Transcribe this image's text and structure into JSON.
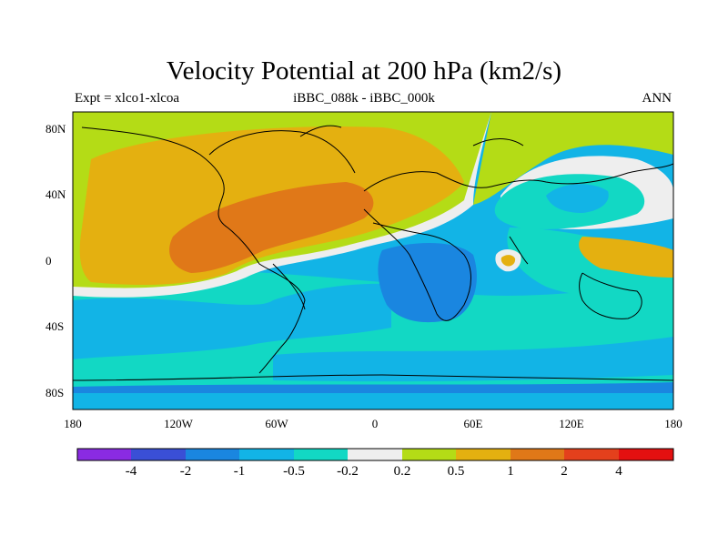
{
  "title": "Velocity Potential at 200 hPa (km2/s)",
  "subtitle_left": "Expt = xlco1-xlcoa",
  "subtitle_center": "iBBC_088k - iBBC_000k",
  "subtitle_right": "ANN",
  "y_ticks": [
    "80N",
    "40N",
    "0",
    "40S",
    "80S"
  ],
  "x_ticks": [
    "180",
    "120W",
    "60W",
    "0",
    "60E",
    "120E",
    "180"
  ],
  "colorbar": {
    "labels": [
      "-4",
      "-2",
      "-1",
      "-0.5",
      "-0.2",
      "0.2",
      "0.5",
      "1",
      "2",
      "4"
    ],
    "colors": [
      "#8a2be2",
      "#3a4fd6",
      "#1a86e0",
      "#12b4e6",
      "#12d8c4",
      "#eeeeee",
      "#b4dc16",
      "#e4b010",
      "#e07818",
      "#e4401c",
      "#e41010"
    ]
  },
  "colors": {
    "land_outline": "#000000"
  }
}
